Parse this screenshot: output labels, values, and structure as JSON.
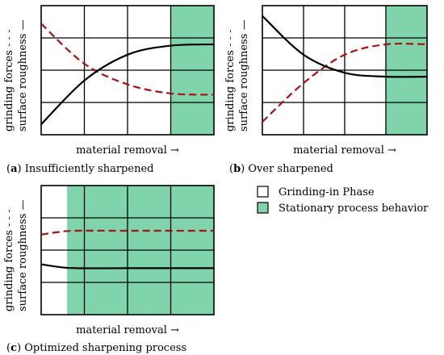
{
  "colors": {
    "stationary_fill": "#7fd4ab",
    "forces_line": "#aa1111",
    "roughness_line": "#000000",
    "grid": "#000000"
  },
  "panels": [
    {
      "letter": "a",
      "caption": "Insufficiently sharpened",
      "xlabel": "material removal →",
      "ylabel_forces": "grinding forces",
      "ylabel_roughness": "surface roughness",
      "stationary_start_fraction": 0.75,
      "roughness_curve": [
        [
          0.0,
          0.08
        ],
        [
          0.25,
          0.42
        ],
        [
          0.5,
          0.62
        ],
        [
          0.75,
          0.69
        ],
        [
          1.0,
          0.7
        ]
      ],
      "forces_curve": [
        [
          0.0,
          0.86
        ],
        [
          0.25,
          0.55
        ],
        [
          0.5,
          0.39
        ],
        [
          0.75,
          0.32
        ],
        [
          1.0,
          0.31
        ]
      ]
    },
    {
      "letter": "b",
      "caption": "Over sharpened",
      "xlabel": "material removal →",
      "ylabel_forces": "grinding forces",
      "ylabel_roughness": "surface roughness",
      "stationary_start_fraction": 0.75,
      "roughness_curve": [
        [
          0.0,
          0.92
        ],
        [
          0.25,
          0.62
        ],
        [
          0.5,
          0.48
        ],
        [
          0.75,
          0.45
        ],
        [
          1.0,
          0.45
        ]
      ],
      "forces_curve": [
        [
          0.0,
          0.1
        ],
        [
          0.25,
          0.4
        ],
        [
          0.5,
          0.62
        ],
        [
          0.75,
          0.7
        ],
        [
          1.0,
          0.7
        ]
      ]
    },
    {
      "letter": "c",
      "caption": "Optimized sharpening process",
      "xlabel": "material removal →",
      "ylabel_forces": "grinding forces",
      "ylabel_roughness": "surface roughness",
      "stationary_start_fraction": 0.15,
      "roughness_curve": [
        [
          0.0,
          0.39
        ],
        [
          0.1,
          0.37
        ],
        [
          0.2,
          0.36
        ],
        [
          0.5,
          0.36
        ],
        [
          1.0,
          0.36
        ]
      ],
      "forces_curve": [
        [
          0.0,
          0.62
        ],
        [
          0.1,
          0.64
        ],
        [
          0.2,
          0.65
        ],
        [
          0.5,
          0.65
        ],
        [
          1.0,
          0.65
        ]
      ]
    }
  ],
  "legend": {
    "items": [
      {
        "label": "Grinding-in Phase",
        "swatch": "#ffffff"
      },
      {
        "label": "Stationary process behavior",
        "swatch": "#7fd4ab"
      }
    ]
  }
}
